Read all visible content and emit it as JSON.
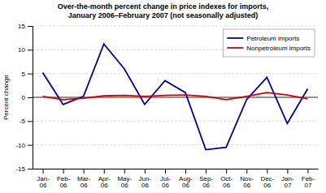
{
  "chart_data": {
    "type": "line",
    "title": "Over-the-month percent change in price indexes for imports,\nJanuary 2006–February 2007 (not seasonally adjusted)",
    "y_label": "Percent change",
    "categories": [
      "Jan-\n06",
      "Feb-\n06",
      "Mar-\n06",
      "Apr-\n06",
      "May-\n06",
      "Jun-\n06",
      "Jul-\n06",
      "Aug-\n06",
      "Sep-\n06",
      "Oct-\n06",
      "Nov-\n06",
      "Dec-\n06",
      "Jan-\n07",
      "Feb-\n07"
    ],
    "series": [
      {
        "name": "Petroleum imports",
        "color": "#000099",
        "values": [
          5.2,
          -1.5,
          0.2,
          11.2,
          6.0,
          -1.5,
          3.5,
          1.0,
          -11.0,
          -10.5,
          -0.5,
          4.2,
          -5.5,
          1.8
        ]
      },
      {
        "name": "Nonpetroleum imports",
        "color": "#CC0000",
        "values": [
          0.2,
          -0.5,
          -0.2,
          0.3,
          0.4,
          0.2,
          0.4,
          0.5,
          0.2,
          -0.5,
          0.2,
          1.0,
          0.5,
          -0.3
        ]
      }
    ],
    "ylim": [
      -15,
      15
    ],
    "yticks": [
      -15,
      -10,
      -5,
      0,
      5,
      10,
      15
    ],
    "grid": true,
    "legend": "upper right"
  }
}
